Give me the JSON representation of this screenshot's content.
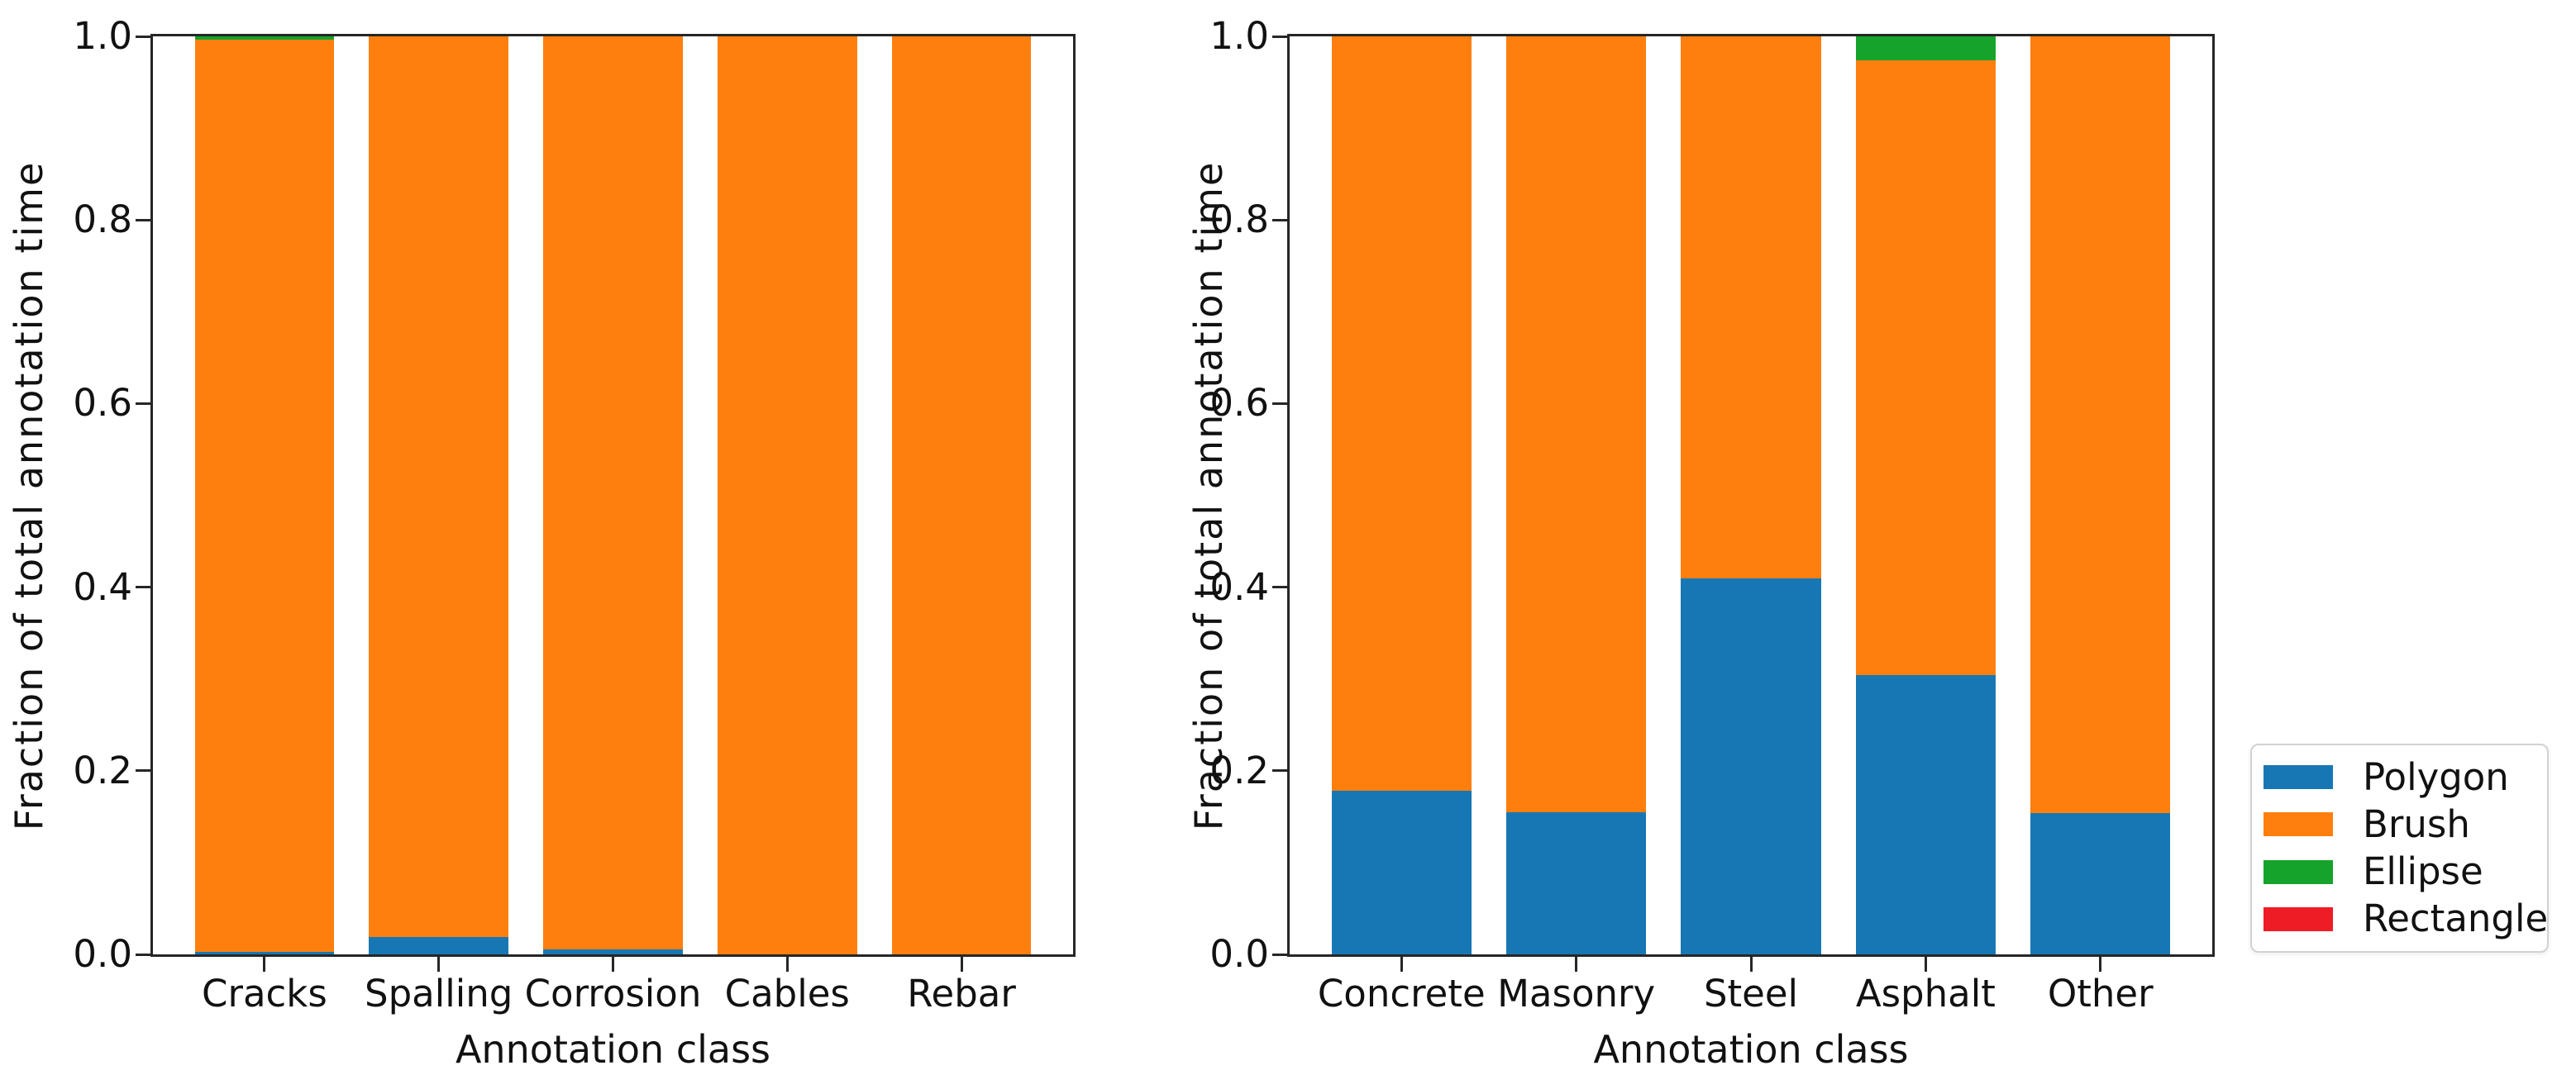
{
  "figure": {
    "background": "#ffffff",
    "xlabel": "Annotation class",
    "ylabel": "Fraction of total annotation time"
  },
  "colors": {
    "polygon": "#1777b4",
    "brush": "#ff7f0e",
    "ellipse": "#16a32b",
    "rectangle": "#ee1c25",
    "axis": "#262626"
  },
  "legend": {
    "entries": [
      {
        "label": "Polygon",
        "color_key": "polygon"
      },
      {
        "label": "Brush",
        "color_key": "brush"
      },
      {
        "label": "Ellipse",
        "color_key": "ellipse"
      },
      {
        "label": "Rectangle",
        "color_key": "rectangle"
      }
    ]
  },
  "chart_data": [
    {
      "type": "bar",
      "stacked": true,
      "title": "",
      "xlabel": "Annotation class",
      "ylabel": "Fraction of total annotation time",
      "categories": [
        "Cracks",
        "Spalling",
        "Corrosion",
        "Cables",
        "Rebar"
      ],
      "series": [
        {
          "name": "Polygon",
          "color_key": "polygon",
          "values": [
            0.003,
            0.019,
            0.005,
            0.0,
            0.0
          ]
        },
        {
          "name": "Brush",
          "color_key": "brush",
          "values": [
            0.993,
            0.981,
            0.995,
            1.0,
            1.0
          ]
        },
        {
          "name": "Ellipse",
          "color_key": "ellipse",
          "values": [
            0.004,
            0.0,
            0.0,
            0.0,
            0.0
          ]
        },
        {
          "name": "Rectangle",
          "color_key": "rectangle",
          "values": [
            0.0,
            0.0,
            0.0,
            0.0,
            0.0
          ]
        }
      ],
      "ylim": [
        0.0,
        1.0
      ],
      "yticks": [
        0.0,
        0.2,
        0.4,
        0.6,
        0.8,
        1.0
      ],
      "ytick_labels": [
        "0.0",
        "0.2",
        "0.4",
        "0.6",
        "0.8",
        "1.0"
      ],
      "grid": false,
      "legend_position": "none"
    },
    {
      "type": "bar",
      "stacked": true,
      "title": "",
      "xlabel": "Annotation class",
      "ylabel": "Fraction of total annotation time",
      "categories": [
        "Concrete",
        "Masonry",
        "Steel",
        "Asphalt",
        "Other"
      ],
      "series": [
        {
          "name": "Polygon",
          "color_key": "polygon",
          "values": [
            0.178,
            0.155,
            0.41,
            0.304,
            0.154
          ]
        },
        {
          "name": "Brush",
          "color_key": "brush",
          "values": [
            0.822,
            0.845,
            0.59,
            0.67,
            0.846
          ]
        },
        {
          "name": "Ellipse",
          "color_key": "ellipse",
          "values": [
            0.0,
            0.0,
            0.0,
            0.026,
            0.0
          ]
        },
        {
          "name": "Rectangle",
          "color_key": "rectangle",
          "values": [
            0.0,
            0.0,
            0.0,
            0.0,
            0.0
          ]
        }
      ],
      "ylim": [
        0.0,
        1.0
      ],
      "yticks": [
        0.0,
        0.2,
        0.4,
        0.6,
        0.8,
        1.0
      ],
      "ytick_labels": [
        "0.0",
        "0.2",
        "0.4",
        "0.6",
        "0.8",
        "1.0"
      ],
      "grid": false,
      "legend_position": "right"
    }
  ]
}
